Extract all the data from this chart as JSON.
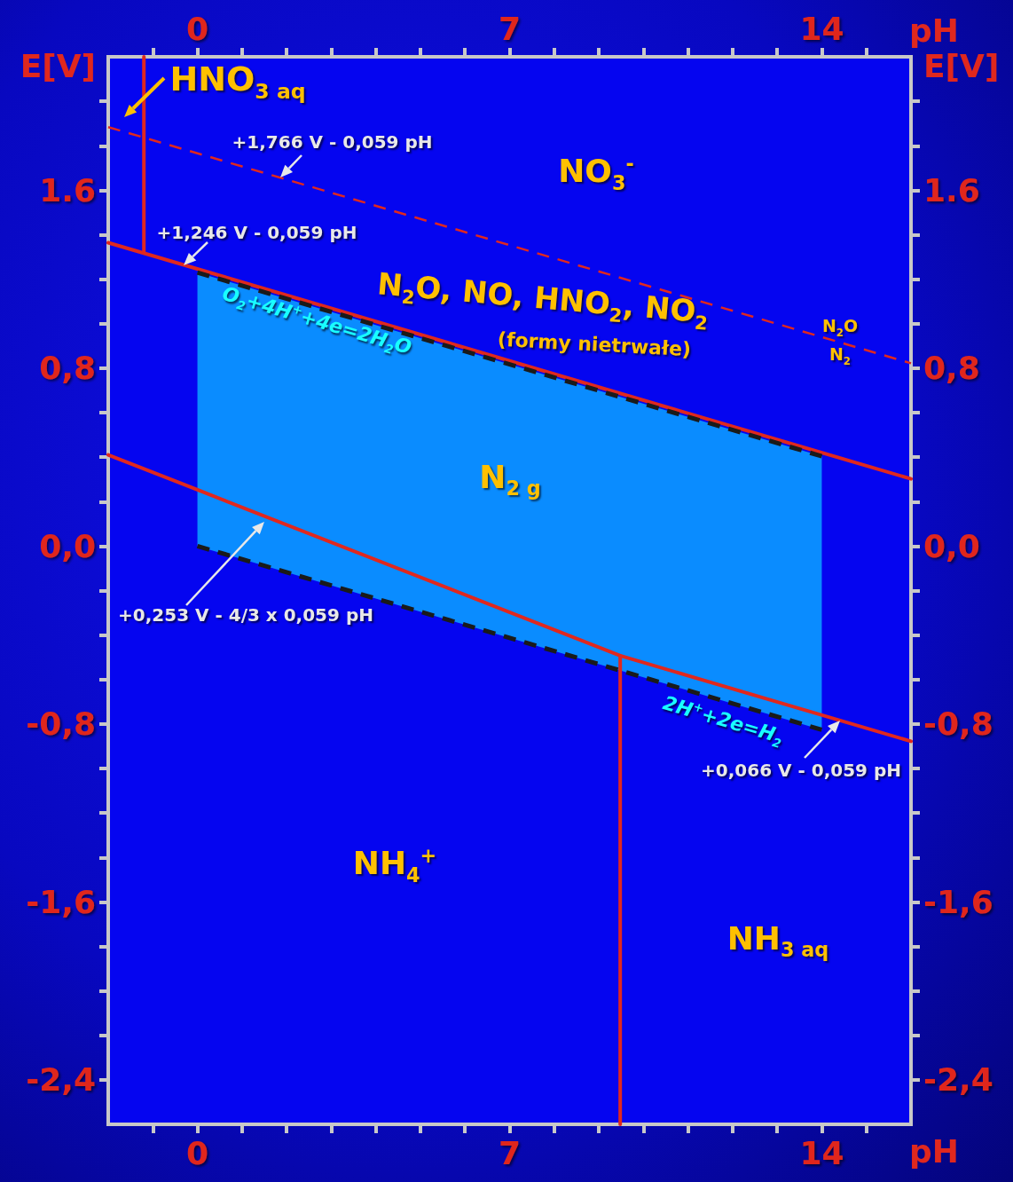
{
  "chart_data": {
    "type": "line",
    "xlabel": "pH",
    "x2label": "pH",
    "ylabel": "E[V]",
    "y2label": "E[V]",
    "xlim": [
      -2,
      16
    ],
    "x2lim": [
      -2,
      16
    ],
    "xticks": [
      {
        "value": -1,
        "label": null
      },
      0,
      {
        "value": 1,
        "label": null
      },
      {
        "value": 2,
        "label": null
      },
      {
        "value": 3,
        "label": null
      },
      {
        "value": 4,
        "label": null
      },
      {
        "value": 5,
        "label": null
      },
      {
        "value": 6,
        "label": null
      },
      7,
      {
        "value": 8,
        "label": null
      },
      {
        "value": 9,
        "label": null
      },
      {
        "value": 10,
        "label": null
      },
      {
        "value": 11,
        "label": null
      },
      {
        "value": 12,
        "label": null
      },
      {
        "value": 13,
        "label": null
      },
      14,
      {
        "value": 15,
        "label": null
      }
    ],
    "x2ticks": [
      {
        "value": -1,
        "label": null
      },
      0,
      {
        "value": 1,
        "label": null
      },
      {
        "value": 2,
        "label": null
      },
      {
        "value": 3,
        "label": null
      },
      {
        "value": 4,
        "label": null
      },
      {
        "value": 5,
        "label": null
      },
      {
        "value": 6,
        "label": null
      },
      7,
      {
        "value": 8,
        "label": null
      },
      {
        "value": 9,
        "label": null
      },
      {
        "value": 10,
        "label": null
      },
      {
        "value": 11,
        "label": null
      },
      {
        "value": 12,
        "label": null
      },
      {
        "value": 13,
        "label": null
      },
      14,
      {
        "value": 15,
        "label": null
      }
    ],
    "ylim": [
      -2.6,
      2.2
    ],
    "y2lim": [
      -2.6,
      2.2
    ],
    "yticks": [
      {
        "value": -2.4,
        "label": "-2,4"
      },
      {
        "value": -2.2,
        "label": null
      },
      {
        "value": -2.0,
        "label": null
      },
      {
        "value": -1.8,
        "label": null
      },
      {
        "value": -1.6,
        "label": "-1,6"
      },
      {
        "value": -1.4,
        "label": null
      },
      {
        "value": -1.2,
        "label": null
      },
      {
        "value": -1.0,
        "label": null
      },
      {
        "value": -0.8,
        "label": "-0,8"
      },
      {
        "value": -0.6,
        "label": null
      },
      {
        "value": -0.4,
        "label": null
      },
      {
        "value": -0.2,
        "label": null
      },
      {
        "value": 0,
        "label": "0,0"
      },
      {
        "value": 0.2,
        "label": null
      },
      {
        "value": 0.4,
        "label": null
      },
      {
        "value": 0.6,
        "label": null
      },
      {
        "value": 0.8,
        "label": "0,8"
      },
      {
        "value": 1.0,
        "label": null
      },
      {
        "value": 1.2,
        "label": null
      },
      {
        "value": 1.4,
        "label": null
      },
      1.6,
      {
        "value": 1.8,
        "label": null
      },
      {
        "value": 2.0,
        "label": null
      }
    ],
    "y2ticks": [
      {
        "value": -2.4,
        "label": "-2,4"
      },
      {
        "value": -2.2,
        "label": null
      },
      {
        "value": -2.0,
        "label": null
      },
      {
        "value": -1.8,
        "label": null
      },
      {
        "value": -1.6,
        "label": "-1,6"
      },
      {
        "value": -1.4,
        "label": null
      },
      {
        "value": -1.2,
        "label": null
      },
      {
        "value": -1.0,
        "label": null
      },
      {
        "value": -0.8,
        "label": "-0,8"
      },
      {
        "value": -0.6,
        "label": null
      },
      {
        "value": -0.4,
        "label": null
      },
      {
        "value": -0.2,
        "label": null
      },
      {
        "value": 0,
        "label": "0,0"
      },
      {
        "value": 0.2,
        "label": null
      },
      {
        "value": 0.4,
        "label": null
      },
      {
        "value": 0.6,
        "label": null
      },
      {
        "value": 0.8,
        "label": "0,8"
      },
      {
        "value": 1.0,
        "label": null
      },
      {
        "value": 1.2,
        "label": null
      },
      {
        "value": 1.4,
        "label": null
      },
      1.6,
      {
        "value": 1.8,
        "label": null
      },
      {
        "value": 2.0,
        "label": null
      }
    ],
    "grid": false,
    "marker": "none",
    "series": [
      {
        "color": "#1a1a1a",
        "line_style": "dashed",
        "x": [
          0,
          14
        ],
        "values": [
          1.23,
          0.404
        ]
      },
      {
        "color": "#1a1a1a",
        "line_style": "dashed",
        "x": [
          0,
          14
        ],
        "values": [
          0,
          -0.826
        ],
        "lower": [
          0,
          -0.826
        ],
        "upper": [
          1.23,
          0.404
        ]
      },
      {
        "color": "#e0281e",
        "line_style": "dashed",
        "x": [
          -2,
          16
        ],
        "values": [
          1.884,
          0.822
        ]
      },
      {
        "color": "#e0281e",
        "line_style": "solid",
        "x": [
          -2,
          16
        ],
        "values": [
          1.364,
          0.302
        ]
      },
      {
        "color": "#e0281e",
        "line_style": "solid",
        "x": [
          -1.2,
          -1.2
        ],
        "values": [
          2.2,
          1.317
        ]
      },
      {
        "color": "#e0281e",
        "line_style": "solid",
        "x": [
          -2,
          0,
          9.48,
          16
        ],
        "values": [
          0.41,
          0.253,
          -0.493,
          -0.878
        ]
      },
      {
        "color": "#e0281e",
        "line_style": "solid",
        "x": [
          9.48,
          9.48
        ],
        "values": [
          -0.493,
          -2.6
        ]
      }
    ],
    "annotations": [
      "HNO$_{3 aq}$",
      {
        "text": "+1,766 V - 0,059 pH",
        "x": 1.85,
        "y": 1.657
      },
      {
        "text": "+1,246 V - 0,059 pH",
        "x": -0.3,
        "y": 1.264
      },
      "+0,253 V - 4/3 x 0,059 pH",
      {
        "text": "+0,066 V - 0,059 pH",
        "x": 14.41,
        "y": -0.784
      },
      "NO$_{3}$$^{-}$",
      "N$_{2}$O, NO, HNO$_{2}$, NO$_{2}$",
      "(formy nietrwałe)",
      "N$_{2}$O",
      "N$_{2}$",
      "O$_{2}$+4H$^{+}$+4e=2H$_{2}$O",
      "N$_{2 g}$",
      "2H$^{+}$+2e=H$_{2}$",
      "NH$_{4}$$^{+}$",
      "NH$_{3 aq}$"
    ]
  }
}
